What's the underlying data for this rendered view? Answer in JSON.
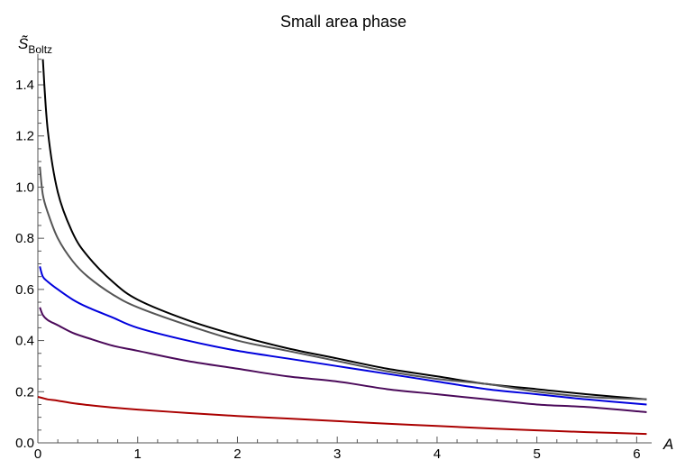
{
  "chart_data": {
    "type": "line",
    "title": "Small area phase",
    "xlabel": "A",
    "ylabel": {
      "main": "S̃",
      "sub": "Boltz"
    },
    "xlim": [
      0,
      6.15
    ],
    "ylim": [
      0,
      1.52
    ],
    "x_ticks": [
      0,
      1,
      2,
      3,
      4,
      5,
      6
    ],
    "y_ticks": [
      0.0,
      0.2,
      0.4,
      0.6,
      0.8,
      1.0,
      1.2,
      1.4
    ],
    "y_tick_labels": [
      "0.0",
      "0.2",
      "0.4",
      "0.6",
      "0.8",
      "1.0",
      "1.2",
      "1.4"
    ],
    "x_tick_labels": [
      "0",
      "1",
      "2",
      "3",
      "4",
      "5",
      "6"
    ],
    "grid": false,
    "series": [
      {
        "color": "#000000",
        "x": [
          0.05,
          0.1,
          0.2,
          0.35,
          0.5,
          0.75,
          1.0,
          1.5,
          2.0,
          2.5,
          3.0,
          3.5,
          4.0,
          4.5,
          5.0,
          5.5,
          6.1
        ],
        "y": [
          1.5,
          1.22,
          0.98,
          0.82,
          0.73,
          0.63,
          0.56,
          0.48,
          0.42,
          0.37,
          0.33,
          0.29,
          0.26,
          0.23,
          0.21,
          0.19,
          0.17
        ]
      },
      {
        "color": "#555555",
        "x": [
          0.02,
          0.05,
          0.1,
          0.2,
          0.35,
          0.5,
          0.75,
          1.0,
          1.5,
          2.0,
          2.5,
          3.0,
          3.5,
          4.0,
          4.5,
          5.0,
          5.5,
          6.1
        ],
        "y": [
          1.08,
          0.97,
          0.9,
          0.8,
          0.71,
          0.65,
          0.58,
          0.53,
          0.46,
          0.4,
          0.36,
          0.32,
          0.28,
          0.25,
          0.23,
          0.2,
          0.18,
          0.17
        ]
      },
      {
        "color": "#0000dd",
        "x": [
          0.02,
          0.05,
          0.1,
          0.2,
          0.35,
          0.5,
          0.75,
          1.0,
          1.5,
          2.0,
          2.5,
          3.0,
          3.5,
          4.0,
          4.5,
          5.0,
          5.5,
          6.1
        ],
        "y": [
          0.69,
          0.65,
          0.63,
          0.6,
          0.56,
          0.53,
          0.49,
          0.45,
          0.4,
          0.36,
          0.33,
          0.3,
          0.27,
          0.24,
          0.21,
          0.19,
          0.17,
          0.15
        ]
      },
      {
        "color": "#4b0a5a",
        "x": [
          0.02,
          0.05,
          0.1,
          0.2,
          0.35,
          0.5,
          0.75,
          1.0,
          1.5,
          2.0,
          2.5,
          3.0,
          3.5,
          4.0,
          4.5,
          5.0,
          5.5,
          6.1
        ],
        "y": [
          0.53,
          0.5,
          0.48,
          0.46,
          0.43,
          0.41,
          0.38,
          0.36,
          0.32,
          0.29,
          0.26,
          0.24,
          0.21,
          0.19,
          0.17,
          0.15,
          0.14,
          0.12
        ]
      },
      {
        "color": "#aa0000",
        "x": [
          0.0,
          0.05,
          0.1,
          0.2,
          0.35,
          0.5,
          0.75,
          1.0,
          1.5,
          2.0,
          2.5,
          3.0,
          3.5,
          4.0,
          4.5,
          5.0,
          5.5,
          6.1
        ],
        "y": [
          0.18,
          0.175,
          0.17,
          0.165,
          0.155,
          0.148,
          0.138,
          0.13,
          0.117,
          0.105,
          0.095,
          0.085,
          0.075,
          0.066,
          0.057,
          0.049,
          0.042,
          0.035
        ]
      }
    ]
  }
}
